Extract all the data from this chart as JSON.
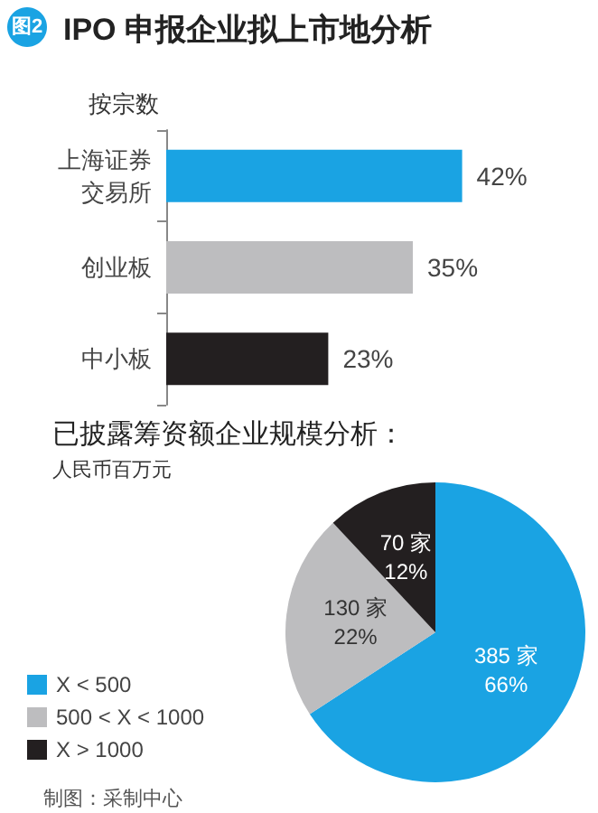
{
  "chart_data": [
    {
      "type": "bar",
      "orientation": "horizontal",
      "title": "IPO 申报企业拟上市地分析",
      "subtitle": "按宗数",
      "annotations": [
        "图2"
      ],
      "categories": [
        "上海证券交易所",
        "创业板",
        "中小板"
      ],
      "values": [
        42,
        35,
        23
      ],
      "colors": [
        "#1aa3e3",
        "#bdbdbf",
        "#231f20"
      ],
      "value_labels": [
        "42%",
        "35%",
        "23%"
      ]
    },
    {
      "type": "pie",
      "title": "已披露筹资额企业规模分析：",
      "subtitle": "人民币百万元",
      "annotations": [
        "制图：采制中心"
      ],
      "legend": "left",
      "categories": [
        "X < 500",
        "500 < X < 1000",
        "X > 1000"
      ],
      "values": [
        385,
        130,
        70
      ],
      "colors": [
        "#1aa3e3",
        "#bdbdbf",
        "#231f20"
      ],
      "value_labels": [
        "385 家\n66%",
        "130 家\n22%",
        "70 家\n12%"
      ]
    }
  ]
}
